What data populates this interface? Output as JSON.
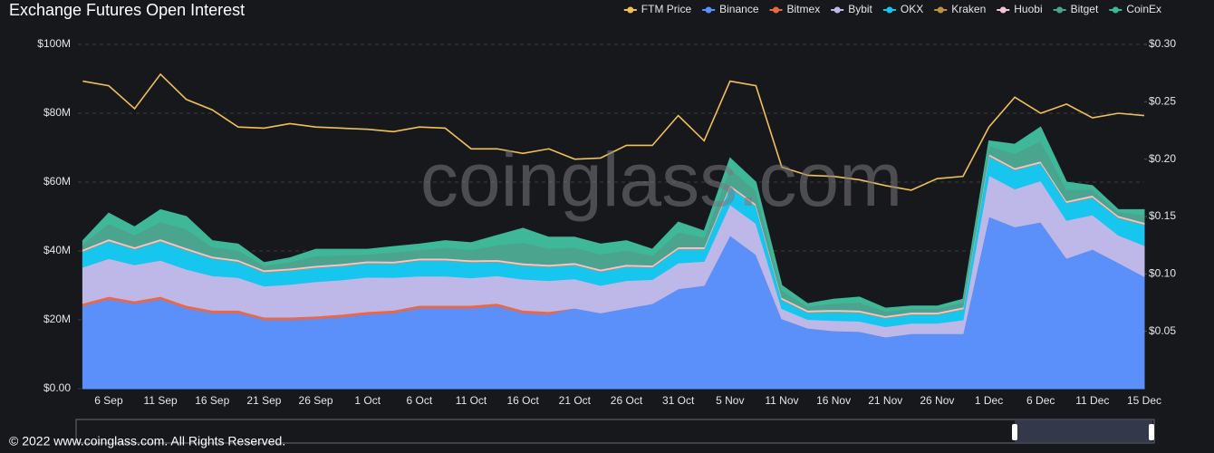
{
  "title": "Exchange  Futures Open Interest",
  "watermark": "coinglass.com",
  "footer": "© 2022 www.coinglass.com. All Rights Reserved.",
  "chart_data": {
    "type": "area",
    "stacked": true,
    "legend": "top-right",
    "grid": true,
    "categories": [
      null,
      "6 Sep",
      null,
      "11 Sep",
      null,
      "16 Sep",
      null,
      "21 Sep",
      null,
      "26 Sep",
      null,
      "1 Oct",
      null,
      "6 Oct",
      null,
      "11 Oct",
      null,
      "16 Oct",
      null,
      "21 Oct",
      null,
      "26 Oct",
      null,
      "31 Oct",
      null,
      "5 Nov",
      null,
      "11 Nov",
      null,
      "16 Nov",
      null,
      "21 Nov",
      null,
      "26 Nov",
      null,
      "1 Dec",
      null,
      "6 Dec",
      null,
      "11 Dec",
      null,
      "15 Dec"
    ],
    "ylim": [
      0,
      100
    ],
    "yticks": [
      {
        "value": 0,
        "label": "$0.00"
      },
      {
        "value": 20,
        "label": "$20M"
      },
      {
        "value": 40,
        "label": "$40M"
      },
      {
        "value": 60,
        "label": "$60M"
      },
      {
        "value": 80,
        "label": "$80M"
      },
      {
        "value": 100,
        "label": "$100M"
      }
    ],
    "y2lim": [
      0,
      0.3
    ],
    "y2ticks": [
      {
        "value": 0.05,
        "label": "$0.05"
      },
      {
        "value": 0.1,
        "label": "$0.10"
      },
      {
        "value": 0.15,
        "label": "$0.15"
      },
      {
        "value": 0.2,
        "label": "$0.20"
      },
      {
        "value": 0.25,
        "label": "$0.25"
      },
      {
        "value": 0.3,
        "label": "$0.30"
      }
    ],
    "series": [
      {
        "name": "FTM Price",
        "type": "line",
        "axis": "y2",
        "color": "#f0c05a",
        "values": [
          0.268,
          0.264,
          0.244,
          0.274,
          0.252,
          0.243,
          0.228,
          0.227,
          0.231,
          0.228,
          0.227,
          0.226,
          0.224,
          0.228,
          0.227,
          0.209,
          0.209,
          0.205,
          0.209,
          0.2,
          0.201,
          0.212,
          0.212,
          0.238,
          0.216,
          0.268,
          0.264,
          0.193,
          0.186,
          0.185,
          0.182,
          0.177,
          0.173,
          0.183,
          0.185,
          0.228,
          0.254,
          0.24,
          0.248,
          0.236,
          0.24,
          0.238
        ]
      },
      {
        "name": "Binance",
        "color": "#5b8ff9",
        "values": [
          24,
          26,
          24.7,
          26,
          23.4,
          22,
          22,
          20,
          20,
          20.3,
          20.8,
          21.6,
          22,
          23.4,
          23.4,
          23.4,
          24,
          22,
          21.6,
          23.4,
          22,
          23.4,
          24.7,
          29,
          30,
          44.5,
          39,
          20.3,
          17.6,
          16.8,
          16.6,
          15,
          16,
          16,
          16,
          50,
          47,
          48.4,
          37.9,
          40.5,
          36.6,
          32.6
        ]
      },
      {
        "name": "Bitmex",
        "color": "#e8684a",
        "values": [
          0.8,
          0.8,
          0.8,
          0.8,
          0.8,
          0.8,
          0.8,
          0.8,
          0.8,
          0.8,
          0.8,
          0.8,
          0.8,
          0.8,
          0.8,
          0.8,
          0.8,
          0.8,
          0.8,
          0,
          0,
          0,
          0,
          0,
          0,
          0,
          0,
          0,
          0,
          0,
          0,
          0,
          0,
          0,
          0,
          0,
          0,
          0,
          0,
          0,
          0,
          0
        ]
      },
      {
        "name": "Bybit",
        "color": "#bdb8e8",
        "values": [
          10.5,
          11,
          10.5,
          10.5,
          10.5,
          10,
          9.5,
          9,
          9.5,
          10,
          10,
          10,
          9.5,
          8.5,
          8.5,
          8,
          8,
          9,
          9,
          8.5,
          8,
          8,
          7,
          7.5,
          7,
          9,
          9,
          3,
          2.5,
          3,
          3,
          3,
          3,
          3,
          4,
          12,
          11,
          12,
          11,
          10,
          8,
          9
        ]
      },
      {
        "name": "OKX",
        "color": "#16c6ef",
        "values": [
          4.5,
          5,
          4.5,
          5.5,
          5.5,
          5,
          4.5,
          4,
          4,
          4,
          4,
          4,
          4,
          4.5,
          4.5,
          4.5,
          4,
          4,
          4,
          4,
          4,
          4,
          3.5,
          4,
          3.5,
          5,
          5,
          2.5,
          2,
          2.5,
          2.5,
          2.5,
          2.5,
          2.5,
          3,
          5.5,
          5.5,
          5,
          5,
          5,
          5,
          6
        ]
      },
      {
        "name": "Kraken",
        "color": "#b8963e",
        "values": [
          0.2,
          0.2,
          0.2,
          0.2,
          0.2,
          0.2,
          0.2,
          0.2,
          0.2,
          0.2,
          0.2,
          0.2,
          0.2,
          0.2,
          0.2,
          0.2,
          0.2,
          0.2,
          0.2,
          0.2,
          0.2,
          0.2,
          0.2,
          0.2,
          0.2,
          0.2,
          0.2,
          0.2,
          0.2,
          0.2,
          0.2,
          0.2,
          0.2,
          0.2,
          0.2,
          0.2,
          0.2,
          0.2,
          0.2,
          0.2,
          0.2,
          0.2
        ]
      },
      {
        "name": "Huobi",
        "color": "#f4c3d8",
        "values": [
          0.5,
          0.5,
          0.5,
          0.5,
          0.5,
          0.5,
          0.5,
          0.5,
          0.5,
          0.5,
          0.5,
          0.5,
          0.5,
          0.5,
          0.5,
          0.5,
          0.5,
          0.5,
          0.5,
          0.5,
          0.5,
          0.5,
          0.5,
          0.5,
          0.5,
          0.5,
          0.5,
          0.5,
          0.5,
          0.5,
          0.5,
          0.5,
          0.5,
          0.5,
          0.5,
          0.5,
          0.5,
          0.5,
          0.5,
          0.5,
          0.5,
          0.5
        ]
      },
      {
        "name": "Bitget",
        "color": "#4ba48e",
        "values": [
          1.5,
          4.5,
          3.5,
          5,
          5.5,
          2.7,
          2.7,
          1.3,
          1.8,
          2.8,
          2.5,
          2,
          2.6,
          2.5,
          3.1,
          3,
          4.2,
          6,
          4.7,
          4.4,
          4.4,
          4.1,
          2.8,
          4.3,
          2.8,
          4.7,
          3.8,
          2.1,
          1.1,
          1.8,
          2.3,
          1.3,
          1.1,
          1.1,
          1.4,
          2.3,
          4.1,
          5.9,
          3.2,
          1.7,
          1,
          2.2
        ]
      },
      {
        "name": "CoinEx",
        "color": "#3fb89a",
        "values": [
          1,
          3,
          2.3,
          3.5,
          3.6,
          1.8,
          1.8,
          0.8,
          1.2,
          1.9,
          1.7,
          1.4,
          1.7,
          1.6,
          2,
          2,
          2.8,
          4.1,
          3.2,
          3,
          2.9,
          2.8,
          1.8,
          2.9,
          1.8,
          3.1,
          2.5,
          1.4,
          0.8,
          1.2,
          1.5,
          0.9,
          0.7,
          0.7,
          0.9,
          1.5,
          2.7,
          4,
          2.2,
          1.1,
          0.7,
          1.5
        ]
      }
    ]
  }
}
